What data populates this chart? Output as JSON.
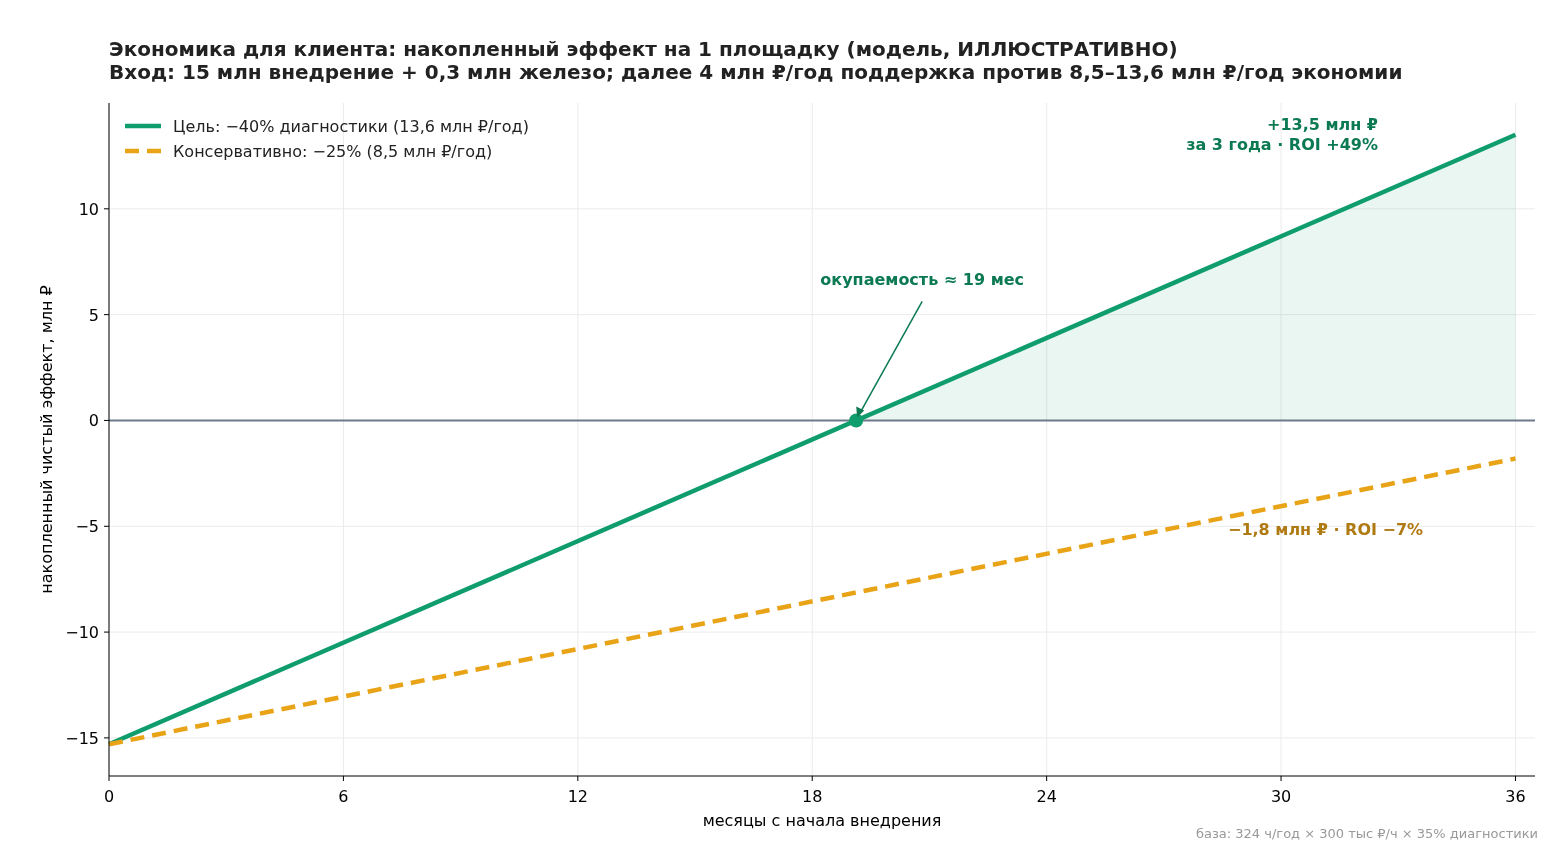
{
  "chart_data": {
    "type": "line",
    "title": "Экономика для клиента: накопленный эффект на 1 площадку (модель, ИЛЛЮСТРАТИВНО)",
    "subtitle": "Вход: 15 млн внедрение + 0,3 млн железо; далее 4 млн ₽/год поддержка против 8,5–13,6 млн ₽/год экономии",
    "xlabel": "месяцы с начала внедрения",
    "ylabel": "накопленный чистый эффект, млн ₽",
    "xlim": [
      0,
      36.5
    ],
    "ylim": [
      -16.8,
      15
    ],
    "xticks": [
      0,
      6,
      12,
      18,
      24,
      30,
      36
    ],
    "yticks": [
      -15,
      -10,
      -5,
      0,
      5,
      10
    ],
    "grid": true,
    "legend": "top left",
    "ref_lines": [
      {
        "axis": "y",
        "value": 0,
        "color": "#6c7a89"
      }
    ],
    "series": [
      {
        "type": "area",
        "color": "#0f9d6e",
        "x": [
          19.125,
          36
        ],
        "values": [
          0,
          13.5
        ]
      },
      {
        "name": "Цель: −40% диагностики (13,6 млн ₽/год)",
        "color": "#0f9d6e",
        "x": [
          0,
          36
        ],
        "values": [
          -15.3,
          13.5
        ],
        "line_style": "solid"
      },
      {
        "name": "Консервативно: −25% (8,5 млн ₽/год)",
        "color": "#e8a317",
        "x": [
          0,
          36
        ],
        "values": [
          -15.3,
          -1.8
        ],
        "line_style": "dashed"
      },
      {
        "type": "scatter",
        "color": "#0f9d6e",
        "x": [
          19.125
        ],
        "values": [
          0
        ],
        "marker": "circle"
      }
    ],
    "annotations": [
      {
        "text": "окупаемость ≈ 19 мес",
        "x": 19.125,
        "y": 0
      },
      "+13,5 млн ₽\nза 3 года · ROI +49%",
      "−1,8 млн ₽ · ROI −7%",
      "база: 324 ч/год × 300 тыс ₽/ч × 35% диагностики"
    ]
  }
}
